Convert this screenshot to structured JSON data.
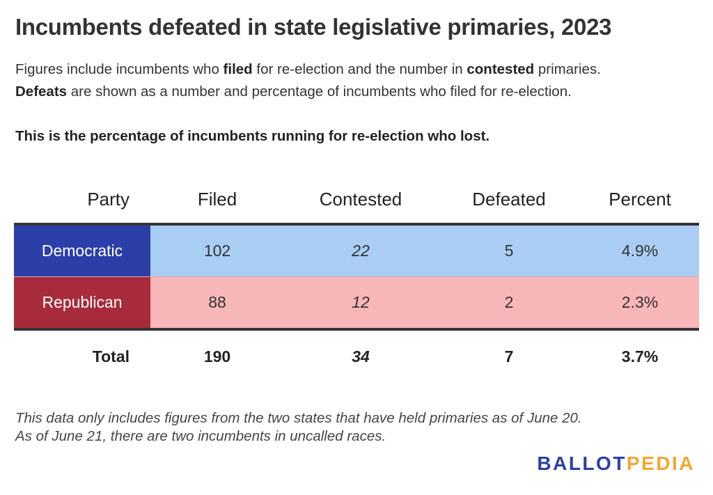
{
  "title": "Incumbents defeated in state legislative primaries, 2023",
  "description": {
    "line1": {
      "a": "Figures include incumbents who ",
      "b": "filed",
      "c": " for re-election and the number in ",
      "d": "contested",
      "e": " primaries."
    },
    "line2": {
      "a": "Defeats",
      "b": " are shown as a number and percentage of incumbents who filed for re-election."
    }
  },
  "subtitle": "This is the percentage of incumbents running for re-election who lost.",
  "colors": {
    "democratic_label": "#2c3ea7",
    "democratic_row": "#a9cdf3",
    "republican_label": "#a82b3b",
    "republican_row": "#f7b6b8",
    "logo_blue": "#2c3ea7",
    "logo_orange": "#f3a732"
  },
  "chart_data": {
    "type": "table",
    "columns": [
      "Party",
      "Filed",
      "Contested",
      "Defeated",
      "Percent"
    ],
    "rows": [
      {
        "party": "Democratic",
        "filed": "102",
        "contested": "22",
        "defeated": "5",
        "percent": "4.9%"
      },
      {
        "party": "Republican",
        "filed": "88",
        "contested": "12",
        "defeated": "2",
        "percent": "2.3%"
      }
    ],
    "total": {
      "label": "Total",
      "filed": "190",
      "contested": "34",
      "defeated": "7",
      "percent": "3.7%"
    }
  },
  "footnote": {
    "line1": "This data only includes figures from the two states that have held primaries as of June 20.",
    "line2": "As of June 21, there are two incumbents in uncalled races."
  },
  "logo": {
    "part1": "BALLOT",
    "part2": "PEDIA"
  }
}
